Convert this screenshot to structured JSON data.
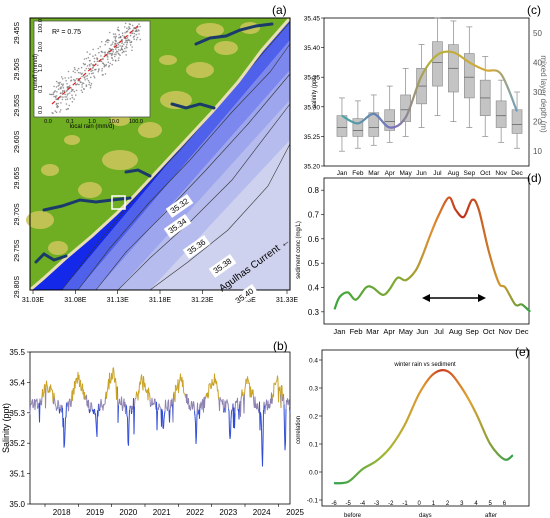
{
  "panels": {
    "a": {
      "label": "(a)"
    },
    "b": {
      "label": "(b)"
    },
    "c": {
      "label": "(c)"
    },
    "d": {
      "label": "(d)"
    },
    "e": {
      "label": "(e)"
    }
  },
  "colors": {
    "land_green": "#6fae22",
    "land_yellow": "#c9c55a",
    "sea_dark": "#0a24e8",
    "sea_mid": "#3c58e8",
    "sea_light": "#8f9df0",
    "sea_pale": "#e8e8f0",
    "river": "#1b3a6b",
    "salinity_high": "#c9a227",
    "salinity_low": "#2f4bd6",
    "scatter_dot": "#777777",
    "regression": "#dd2222"
  },
  "chart_data": [
    {
      "panel": "a",
      "type": "heatmap",
      "xlabel": "",
      "ylabel": "",
      "x_ticks": [
        "31.03E",
        "31.08E",
        "31.13E",
        "31.18E",
        "31.23E",
        "31.28E",
        "31.33E"
      ],
      "y_ticks": [
        "29.45S",
        "29.50S",
        "29.55S",
        "29.60S",
        "29.65S",
        "29.70S",
        "29.75S",
        "29.80S"
      ],
      "contour_labels": [
        "35.32",
        "35.34",
        "35.36",
        "35.38",
        "35.40"
      ],
      "annotation": "Agulhas Current ←",
      "inset": {
        "type": "scatter",
        "xlabel": "local rain (mm/d)",
        "ylabel": "runoff (mm/d)",
        "x_ticks": [
          "0.0",
          "0.1",
          "1.0",
          "10.0",
          "100.0"
        ],
        "y_ticks": [
          "0.0",
          "0.1",
          "1.0",
          "10.0",
          "100.0"
        ],
        "annotation": "R² = 0.75"
      }
    },
    {
      "panel": "b",
      "type": "line",
      "ylabel": "Salinity (ppt)",
      "xlabel": "",
      "ylim": [
        35.0,
        35.5
      ],
      "y_ticks": [
        "35.0",
        "35.1",
        "35.2",
        "35.3",
        "35.4",
        "35.5"
      ],
      "x_ticks": [
        "2018",
        "2019",
        "2020",
        "2021",
        "2022",
        "2023",
        "2024",
        "2025"
      ],
      "x_range": [
        2017.55,
        2025.35
      ],
      "peaks": [
        [
          2018.08,
          35.39
        ],
        [
          2019.0,
          35.41
        ],
        [
          2020.02,
          35.43
        ],
        [
          2020.94,
          35.41
        ],
        [
          2022.06,
          35.41
        ],
        [
          2023.05,
          35.41
        ],
        [
          2024.07,
          35.4
        ],
        [
          2024.98,
          35.4
        ]
      ],
      "dips": [
        [
          2018.58,
          35.17
        ],
        [
          2019.55,
          35.21
        ],
        [
          2020.5,
          35.15
        ],
        [
          2021.55,
          35.22
        ],
        [
          2022.53,
          35.21
        ],
        [
          2023.55,
          35.19
        ],
        [
          2024.52,
          35.1
        ],
        [
          2025.2,
          35.13
        ]
      ],
      "baseline": 35.32
    },
    {
      "panel": "c",
      "type": "line",
      "ylabel": "salinity (ppt)",
      "ylabel_right": "mixed layer depth (m)",
      "ylim": [
        35.2,
        35.45
      ],
      "y_ticks": [
        "35.20",
        "35.25",
        "35.30",
        "35.35",
        "35.40",
        "35.45"
      ],
      "y_ticks_right": [
        "10",
        "20",
        "30",
        "40",
        "50"
      ],
      "categories": [
        "Jan",
        "Feb",
        "Mar",
        "Apr",
        "May",
        "Jun",
        "Jul",
        "Aug",
        "Sep",
        "Oct",
        "Nov",
        "Dec"
      ],
      "salinity": [
        35.285,
        35.272,
        35.288,
        35.265,
        35.282,
        35.352,
        35.388,
        35.392,
        35.375,
        35.362,
        35.355,
        35.292
      ],
      "mixed_layer_depth_box": [
        {
          "min": 10,
          "q1": 15,
          "med": 18,
          "q3": 22,
          "max": 28
        },
        {
          "min": 11,
          "q1": 15,
          "med": 17,
          "q3": 21,
          "max": 27
        },
        {
          "min": 12,
          "q1": 15,
          "med": 18,
          "q3": 23,
          "max": 29
        },
        {
          "min": 13,
          "q1": 17,
          "med": 20,
          "q3": 24,
          "max": 32
        },
        {
          "min": 15,
          "q1": 20,
          "med": 24,
          "q3": 29,
          "max": 38
        },
        {
          "min": 18,
          "q1": 26,
          "med": 32,
          "q3": 38,
          "max": 46
        },
        {
          "min": 22,
          "q1": 32,
          "med": 40,
          "q3": 47,
          "max": 55
        },
        {
          "min": 20,
          "q1": 30,
          "med": 38,
          "q3": 46,
          "max": 54
        },
        {
          "min": 18,
          "q1": 28,
          "med": 35,
          "q3": 43,
          "max": 52
        },
        {
          "min": 15,
          "q1": 22,
          "med": 28,
          "q3": 34,
          "max": 42
        },
        {
          "min": 13,
          "q1": 18,
          "med": 22,
          "q3": 27,
          "max": 34
        },
        {
          "min": 11,
          "q1": 16,
          "med": 19,
          "q3": 24,
          "max": 30
        }
      ],
      "right_ylim": [
        5,
        55
      ]
    },
    {
      "panel": "d",
      "type": "line",
      "ylabel": "sediment conc (mg/L)",
      "ylim": [
        0.25,
        0.85
      ],
      "y_ticks": [
        "0.3",
        "0.4",
        "0.5",
        "0.6",
        "0.7",
        "0.8"
      ],
      "categories": [
        "Jan",
        "Feb",
        "Mar",
        "Apr",
        "May",
        "Jun",
        "Jul",
        "Aug",
        "Sep",
        "Oct",
        "Nov",
        "Dec"
      ],
      "values": [
        0.4,
        0.36,
        0.4,
        0.38,
        0.43,
        0.53,
        0.67,
        0.75,
        0.73,
        0.55,
        0.4,
        0.3
      ],
      "annotation": "↔ Jul–Oct"
    },
    {
      "panel": "e",
      "type": "line",
      "title": "winter rain vs sediment",
      "ylabel": "correlation",
      "ylim": [
        -0.1,
        0.4
      ],
      "y_ticks": [
        "-0.1",
        "0.0",
        "0.1",
        "0.2",
        "0.3",
        "0.4"
      ],
      "x_ticks": [
        "-6",
        "-5",
        "-4",
        "-3",
        "-2",
        "-1",
        "0",
        "1",
        "2",
        "3",
        "4",
        "5",
        "6"
      ],
      "x_sub_labels": [
        "before",
        "days",
        "after"
      ],
      "x": [
        -6,
        -5,
        -4,
        -3,
        -2,
        -1,
        0,
        1,
        2,
        3,
        4,
        5,
        6,
        6.6
      ],
      "values": [
        -0.04,
        -0.035,
        0.01,
        0.04,
        0.09,
        0.17,
        0.28,
        0.35,
        0.36,
        0.3,
        0.21,
        0.1,
        0.045,
        0.06
      ]
    }
  ]
}
